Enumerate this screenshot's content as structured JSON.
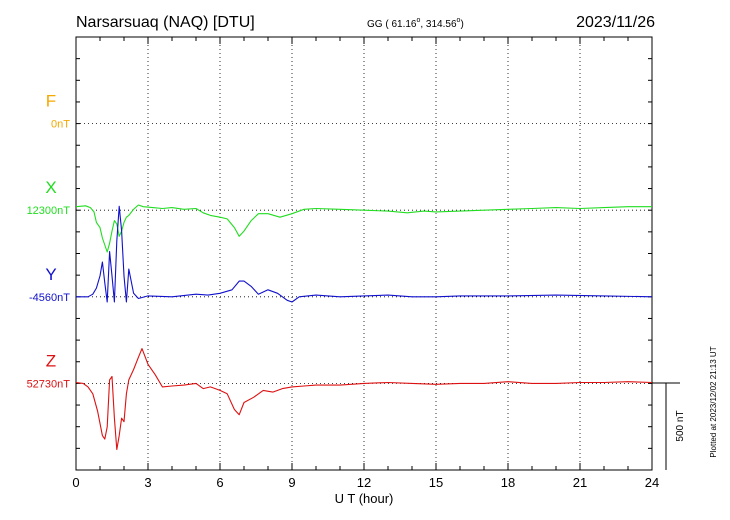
{
  "header": {
    "station": "Narsarsuaq (NAQ)  [DTU]",
    "coords_prefix": "GG ( 61.16",
    "coords_mid": ", 314.56",
    "coords_suffix": ")",
    "date": "2023/11/26"
  },
  "footer": {
    "plotted": "Plotted at 2023/12/02 21:13 UT"
  },
  "chart_data": {
    "type": "line",
    "xlabel": "U T (hour)",
    "xlim": [
      0,
      24
    ],
    "xticks": [
      "0",
      "3",
      "6",
      "9",
      "12",
      "15",
      "18",
      "21",
      "24"
    ],
    "scale_bar": {
      "label": "500 nT",
      "value_nT": 500
    },
    "series": [
      {
        "name": "F",
        "baseline_label": "0nT",
        "color": "#f5a800",
        "baseline_row": 1,
        "x": [],
        "values": []
      },
      {
        "name": "X",
        "baseline_label": "12300nT",
        "color": "#22dd22",
        "baseline_row": 2,
        "x": [
          0,
          0.4,
          0.6,
          0.75,
          0.85,
          1.0,
          1.1,
          1.2,
          1.3,
          1.4,
          1.5,
          1.6,
          1.7,
          1.8,
          1.9,
          2.0,
          2.1,
          2.2,
          2.4,
          2.6,
          2.8,
          3.2,
          3.6,
          4.0,
          4.5,
          5.0,
          5.3,
          5.6,
          6.0,
          6.3,
          6.6,
          6.8,
          7.0,
          7.3,
          7.6,
          8.0,
          8.5,
          9.0,
          9.5,
          10.0,
          11.0,
          12.0,
          13.0,
          13.8,
          14.5,
          15.0,
          16.0,
          17.0,
          18.0,
          19.0,
          20.0,
          21.0,
          22.0,
          23.0,
          24.0
        ],
        "values": [
          20,
          25,
          15,
          -10,
          -70,
          -100,
          -160,
          -200,
          -240,
          -190,
          -120,
          -60,
          -80,
          -150,
          -120,
          -70,
          -40,
          -30,
          5,
          30,
          20,
          15,
          10,
          15,
          5,
          10,
          -15,
          -30,
          -40,
          -50,
          -100,
          -150,
          -120,
          -60,
          -20,
          -20,
          -40,
          -20,
          5,
          10,
          5,
          0,
          -5,
          -15,
          -5,
          -10,
          -5,
          0,
          5,
          10,
          15,
          10,
          15,
          20,
          20
        ]
      },
      {
        "name": "Y",
        "baseline_label": "-4560nT",
        "color": "#1111cc",
        "baseline_row": 3,
        "x": [
          0,
          0.5,
          0.7,
          0.85,
          1.0,
          1.1,
          1.2,
          1.3,
          1.4,
          1.5,
          1.6,
          1.7,
          1.8,
          1.9,
          2.0,
          2.1,
          2.2,
          2.4,
          2.6,
          3.0,
          4.0,
          5.0,
          5.5,
          6.0,
          6.5,
          6.8,
          7.0,
          7.3,
          7.6,
          8.0,
          8.4,
          8.8,
          9.0,
          9.3,
          10.0,
          11.0,
          12.0,
          13.0,
          14.0,
          15.0,
          16.0,
          18.0,
          20.0,
          22.0,
          24.0
        ],
        "values": [
          0,
          0,
          15,
          50,
          120,
          200,
          80,
          -30,
          260,
          120,
          -30,
          320,
          520,
          380,
          120,
          -30,
          160,
          20,
          -10,
          5,
          0,
          15,
          10,
          20,
          40,
          90,
          90,
          60,
          15,
          40,
          20,
          -20,
          -30,
          0,
          10,
          0,
          5,
          10,
          0,
          0,
          5,
          5,
          10,
          5,
          0
        ]
      },
      {
        "name": "Z",
        "baseline_label": "52730nT",
        "color": "#dd1111",
        "baseline_row": 4,
        "x": [
          0,
          0.3,
          0.5,
          0.7,
          0.9,
          1.0,
          1.1,
          1.2,
          1.3,
          1.4,
          1.5,
          1.6,
          1.7,
          1.8,
          1.9,
          2.0,
          2.1,
          2.2,
          2.4,
          2.6,
          2.75,
          3.0,
          3.3,
          3.6,
          4.0,
          4.5,
          5.0,
          5.3,
          5.6,
          6.0,
          6.3,
          6.6,
          6.8,
          7.0,
          7.4,
          7.8,
          8.2,
          8.6,
          9.0,
          9.5,
          10.0,
          11.0,
          12.0,
          13.0,
          14.0,
          15.0,
          16.0,
          17.0,
          18.0,
          19.0,
          20.0,
          21.0,
          22.0,
          23.0,
          24.0
        ],
        "values": [
          5,
          0,
          -20,
          -60,
          -160,
          -230,
          -300,
          -320,
          -250,
          20,
          40,
          -200,
          -380,
          -300,
          -200,
          -220,
          -60,
          20,
          80,
          150,
          200,
          110,
          50,
          -20,
          -15,
          -10,
          0,
          -30,
          -20,
          -40,
          -60,
          -150,
          -180,
          -110,
          -80,
          -40,
          -50,
          -30,
          -20,
          -15,
          -10,
          -10,
          0,
          5,
          0,
          -5,
          0,
          0,
          10,
          0,
          0,
          5,
          5,
          10,
          5
        ]
      }
    ]
  }
}
